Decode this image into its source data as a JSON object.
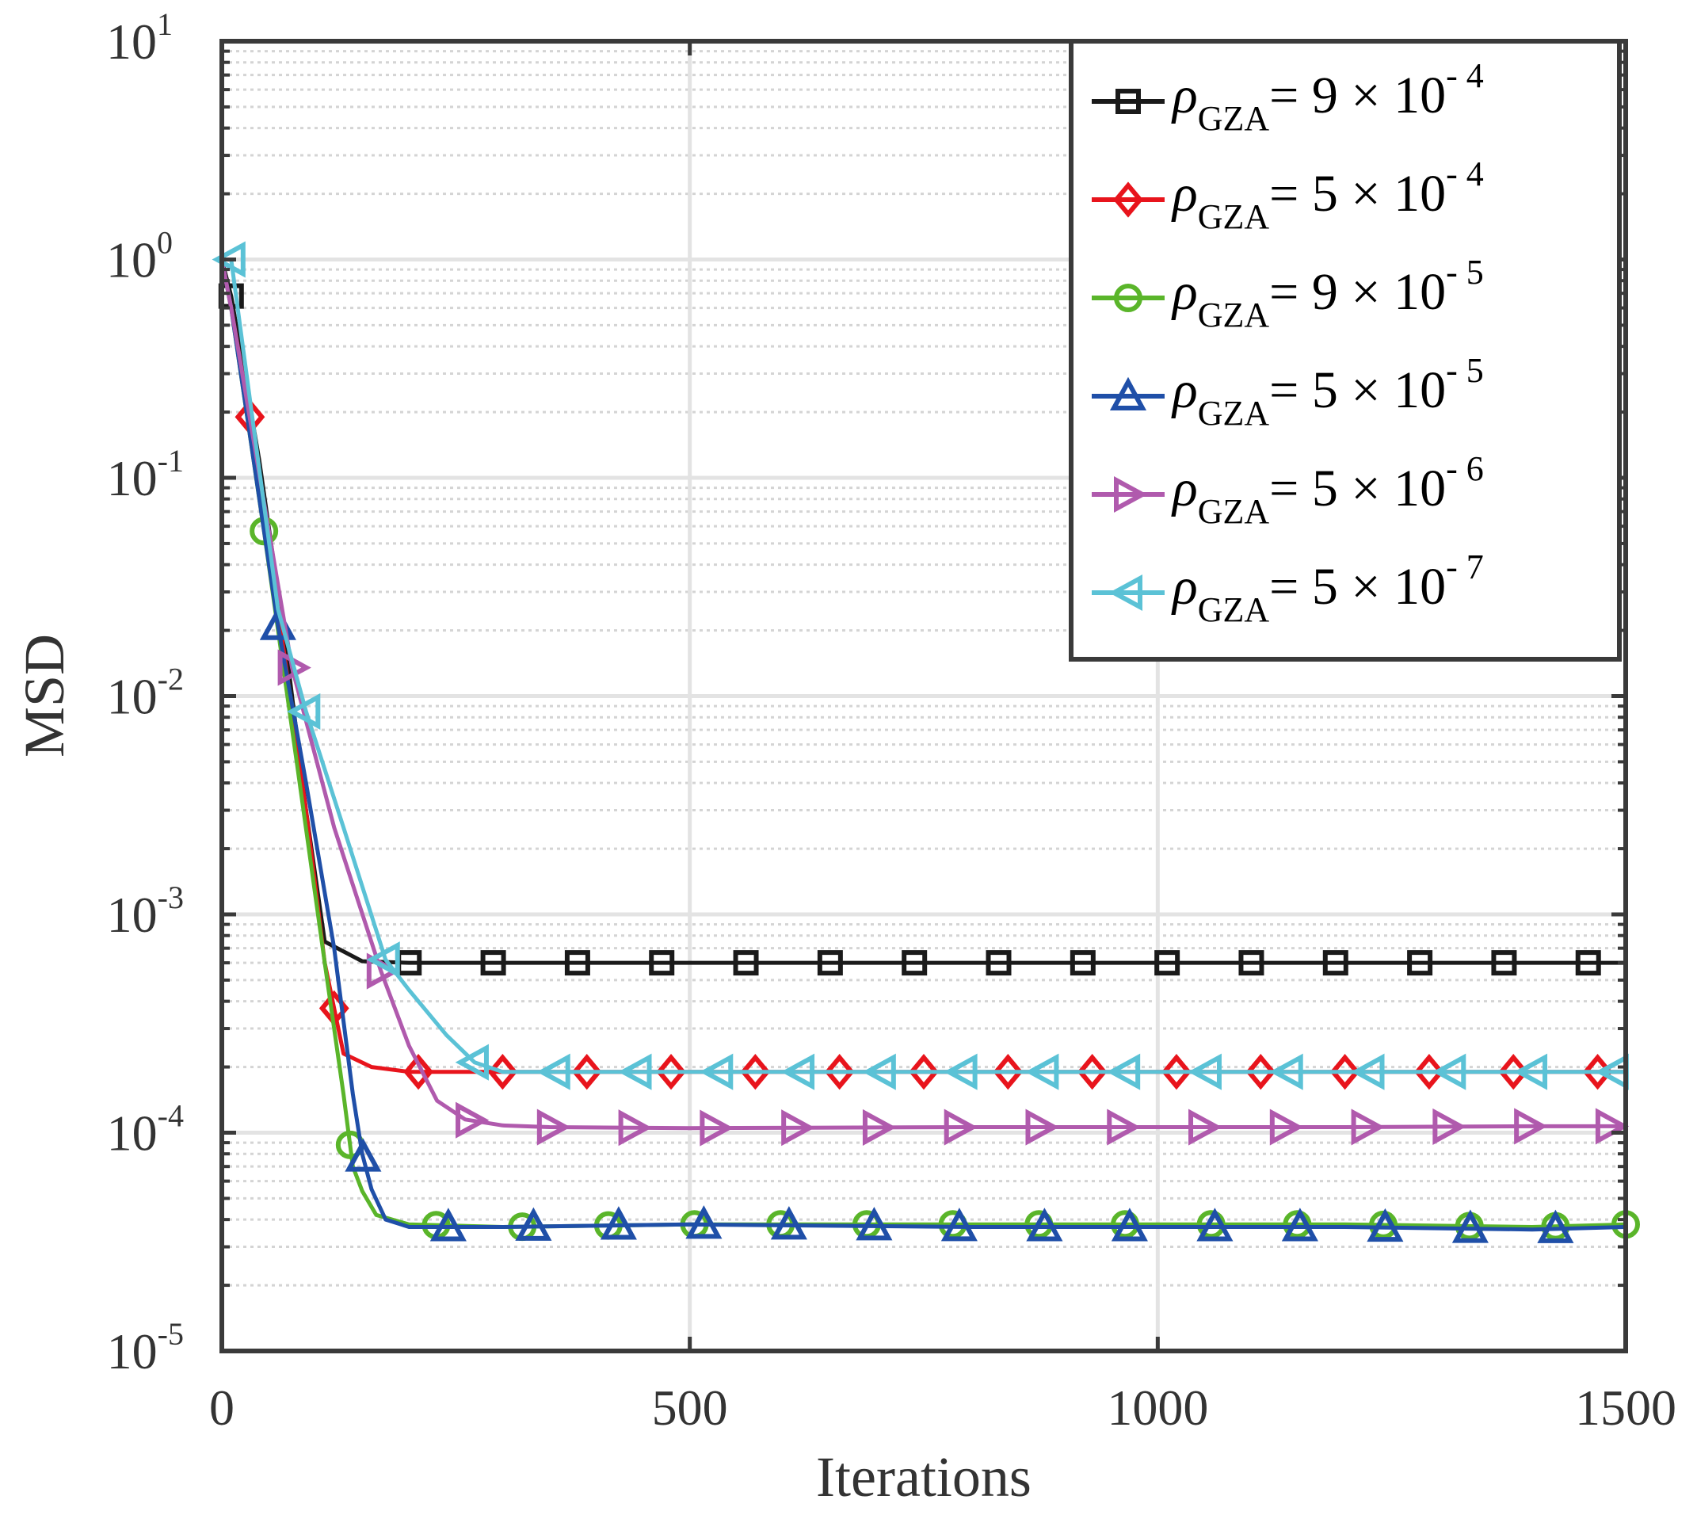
{
  "chart_data": {
    "type": "line",
    "title": "",
    "xlabel": "Iterations",
    "ylabel": "MSD",
    "xlim": [
      0,
      1500
    ],
    "ylim": [
      1e-05,
      10
    ],
    "yscale": "log",
    "grid": true,
    "x_ticks": [
      "0",
      "500",
      "1000",
      "1500"
    ],
    "y_ticks": [
      {
        "base": "10",
        "exp": "1"
      },
      {
        "base": "10",
        "exp": "0"
      },
      {
        "base": "10",
        "exp": "-1"
      },
      {
        "base": "10",
        "exp": "-2"
      },
      {
        "base": "10",
        "exp": "-3"
      },
      {
        "base": "10",
        "exp": "-4"
      },
      {
        "base": "10",
        "exp": "-5"
      }
    ],
    "legend_position": "top-right",
    "series": [
      {
        "name": "ρGZA = 9 × 10^-4",
        "legend": {
          "sym": "ρ",
          "sub": "GZA",
          "rest": "= 9 ×  10",
          "exp": "- 4"
        },
        "color": "#1a1a1a",
        "marker": "square",
        "x": [
          0,
          10,
          40,
          70,
          90,
          110,
          150,
          200,
          300,
          400,
          600,
          800,
          1000,
          1200,
          1400,
          1500
        ],
        "y": [
          1.0,
          0.68,
          0.12,
          0.015,
          0.003,
          0.00075,
          0.00061,
          0.0006,
          0.0006,
          0.0006,
          0.0006,
          0.0006,
          0.0006,
          0.0006,
          0.0006,
          0.0006
        ],
        "marker_x": [
          10,
          200,
          290,
          380,
          470,
          560,
          650,
          740,
          830,
          920,
          1010,
          1100,
          1190,
          1280,
          1370,
          1460
        ]
      },
      {
        "name": "ρGZA = 5 × 10^-4",
        "legend": {
          "sym": "ρ",
          "sub": "GZA",
          "rest": "= 5 ×  10",
          "exp": "- 4"
        },
        "color": "#e8141c",
        "marker": "diamond",
        "x": [
          0,
          10,
          30,
          60,
          90,
          110,
          130,
          160,
          200,
          300,
          500,
          800,
          1000,
          1200,
          1400,
          1500
        ],
        "y": [
          1.0,
          0.6,
          0.19,
          0.025,
          0.003,
          0.0006,
          0.00023,
          0.0002,
          0.00019,
          0.00019,
          0.00019,
          0.00019,
          0.00019,
          0.00019,
          0.00019,
          0.00019
        ],
        "marker_x": [
          30,
          120,
          210,
          300,
          390,
          480,
          570,
          660,
          750,
          840,
          930,
          1020,
          1110,
          1200,
          1290,
          1380,
          1470
        ]
      },
      {
        "name": "ρGZA = 9 × 10^-5",
        "legend": {
          "sym": "ρ",
          "sub": "GZA",
          "rest": "= 9 ×  10",
          "exp": "- 5"
        },
        "color": "#5ab52a",
        "marker": "circle",
        "x": [
          0,
          10,
          45,
          80,
          110,
          130,
          140,
          150,
          165,
          200,
          300,
          500,
          800,
          1000,
          1200,
          1400,
          1500
        ],
        "y": [
          1.0,
          0.6,
          0.057,
          0.005,
          0.0006,
          0.00015,
          7e-05,
          5.4e-05,
          4.2e-05,
          3.8e-05,
          3.7e-05,
          3.8e-05,
          3.8e-05,
          3.8e-05,
          3.8e-05,
          3.7e-05,
          3.8e-05
        ],
        "marker_x": [
          45,
          137,
          229,
          321,
          413,
          505,
          597,
          689,
          781,
          873,
          965,
          1057,
          1149,
          1241,
          1333,
          1425,
          1500
        ]
      },
      {
        "name": "ρGZA = 5 × 10^-5",
        "legend": {
          "sym": "ρ",
          "sub": "GZA",
          "rest": "= 5 ×  10",
          "exp": "- 5"
        },
        "color": "#1f4fa8",
        "marker": "triangle-up",
        "x": [
          0,
          10,
          60,
          90,
          120,
          140,
          150,
          160,
          175,
          200,
          300,
          500,
          800,
          1000,
          1200,
          1400,
          1500
        ],
        "y": [
          1.0,
          0.6,
          0.021,
          0.004,
          0.0007,
          0.00015,
          8e-05,
          5.5e-05,
          4e-05,
          3.7e-05,
          3.7e-05,
          3.8e-05,
          3.7e-05,
          3.7e-05,
          3.7e-05,
          3.6e-05,
          3.7e-05
        ],
        "marker_x": [
          60,
          151,
          242,
          333,
          424,
          515,
          606,
          697,
          788,
          879,
          970,
          1061,
          1152,
          1243,
          1334,
          1425
        ]
      },
      {
        "name": "ρGZA = 5 × 10^-6",
        "legend": {
          "sym": "ρ",
          "sub": "GZA",
          "rest": "= 5 ×  10",
          "exp": "- 6"
        },
        "color": "#b05aad",
        "marker": "triangle-right",
        "x": [
          0,
          10,
          75,
          120,
          170,
          200,
          230,
          260,
          300,
          350,
          500,
          800,
          1000,
          1200,
          1400,
          1500
        ],
        "y": [
          1.0,
          0.6,
          0.0135,
          0.0025,
          0.00055,
          0.00025,
          0.00014,
          0.000115,
          0.000108,
          0.000106,
          0.000105,
          0.000106,
          0.000106,
          0.000106,
          0.000107,
          0.000107
        ],
        "marker_x": [
          75,
          170,
          265,
          352,
          439,
          526,
          613,
          700,
          787,
          874,
          961,
          1048,
          1135,
          1222,
          1309,
          1396,
          1483
        ]
      },
      {
        "name": "ρGZA = 5 × 10^-7",
        "legend": {
          "sym": "ρ",
          "sub": "GZA",
          "rest": "= 5 ×  10",
          "exp": "- 7"
        },
        "color": "#5bc2d6",
        "marker": "triangle-left",
        "x": [
          0,
          10,
          60,
          90,
          130,
          175,
          200,
          240,
          270,
          300,
          350,
          500,
          800,
          1000,
          1200,
          1400,
          1500
        ],
        "y": [
          1.0,
          1.0,
          0.025,
          0.0085,
          0.0025,
          0.00062,
          0.00045,
          0.00028,
          0.00021,
          0.00019,
          0.00019,
          0.00019,
          0.00019,
          0.00019,
          0.00019,
          0.00019,
          0.00019
        ],
        "marker_x": [
          10,
          90,
          175,
          270,
          357,
          444,
          531,
          618,
          705,
          792,
          879,
          966,
          1053,
          1140,
          1227,
          1314,
          1401,
          1488
        ]
      }
    ]
  }
}
